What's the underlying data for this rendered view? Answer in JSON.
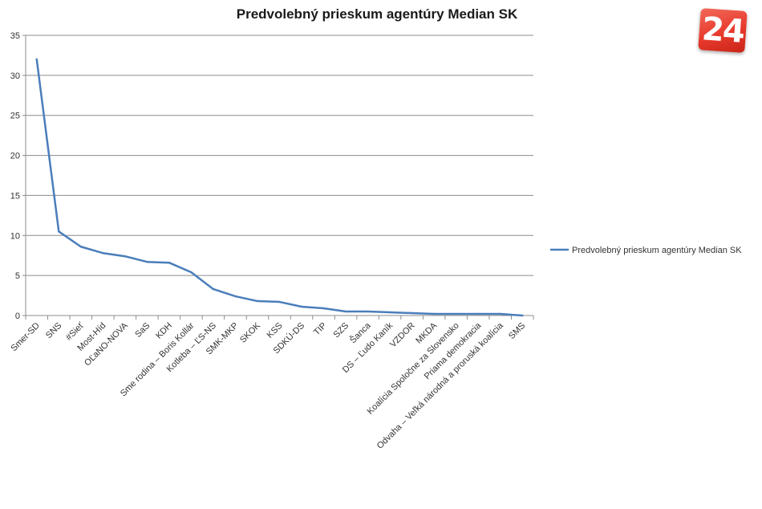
{
  "chart_data": {
    "type": "line",
    "title": "Predvolebný prieskum agentúry Median SK",
    "xlabel": "",
    "ylabel": "",
    "ylim": [
      0,
      35
    ],
    "yticks": [
      0,
      5,
      10,
      15,
      20,
      25,
      30,
      35
    ],
    "grid": true,
    "legend_position": "right",
    "categories": [
      "Smer-SD",
      "SNS",
      "#Sieť",
      "Most-Híd",
      "OĽaNO-NOVA",
      "SaS",
      "KDH",
      "Sme rodina – Boris Kollár",
      "Kotleba – ĽS-NS",
      "SMK-MKP",
      "SKOK",
      "KSS",
      "SDKÚ-DS",
      "TIP",
      "SZS",
      "Šanca",
      "DS – Ľudo Kaník",
      "VZDOR",
      "MKDA",
      "Koalícia Spoločne za Slovensko",
      "Priama demokracia",
      "Odvaha – Veľká národná a proruská koalícia",
      "SMS"
    ],
    "series": [
      {
        "name": "Predvolebný prieskum agentúry Median SK",
        "color": "#4a7ebb",
        "values": [
          32,
          10.5,
          8.6,
          7.8,
          7.4,
          6.7,
          6.6,
          5.4,
          3.3,
          2.4,
          1.8,
          1.7,
          1.1,
          0.9,
          0.5,
          0.5,
          0.4,
          0.3,
          0.2,
          0.2,
          0.2,
          0.2,
          0
        ]
      }
    ]
  },
  "logo": {
    "text": "24",
    "color": "#e8392c"
  }
}
